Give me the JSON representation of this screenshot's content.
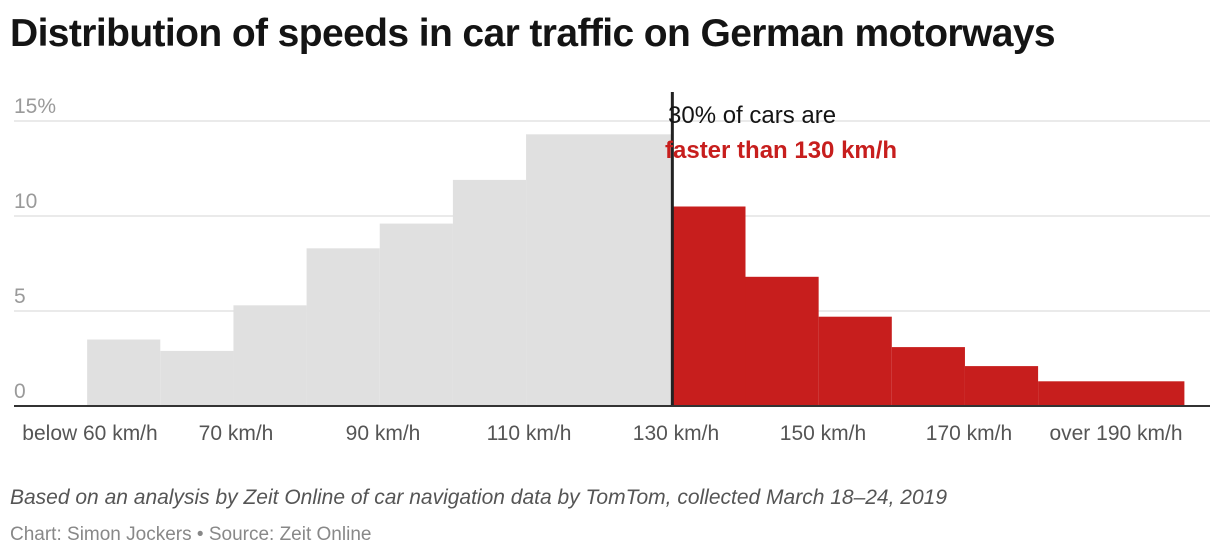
{
  "chart_data": {
    "type": "bar",
    "title": "Distribution of speeds in car traffic on German motorways",
    "xlabel": "",
    "ylabel": "",
    "ylim": [
      0,
      15
    ],
    "y_ticks": [
      {
        "value": 0,
        "label": "0"
      },
      {
        "value": 5,
        "label": "5"
      },
      {
        "value": 10,
        "label": "10"
      },
      {
        "value": 15,
        "label": "15%"
      }
    ],
    "x_ticks": [
      "below 60 km/h",
      "70 km/h",
      "90 km/h",
      "110 km/h",
      "130 km/h",
      "150 km/h",
      "170 km/h",
      "over 190 km/h"
    ],
    "bins": [
      {
        "from": 50,
        "to": 60,
        "value": 3.5,
        "group": "below"
      },
      {
        "from": 60,
        "to": 70,
        "value": 2.9,
        "group": "below"
      },
      {
        "from": 70,
        "to": 80,
        "value": 5.3,
        "group": "below"
      },
      {
        "from": 80,
        "to": 90,
        "value": 8.3,
        "group": "below"
      },
      {
        "from": 90,
        "to": 100,
        "value": 9.6,
        "group": "below"
      },
      {
        "from": 100,
        "to": 110,
        "value": 11.9,
        "group": "below"
      },
      {
        "from": 110,
        "to": 130,
        "value": 14.3,
        "group": "below"
      },
      {
        "from": 130,
        "to": 140,
        "value": 10.5,
        "group": "above"
      },
      {
        "from": 140,
        "to": 150,
        "value": 6.8,
        "group": "above"
      },
      {
        "from": 150,
        "to": 160,
        "value": 4.7,
        "group": "above"
      },
      {
        "from": 160,
        "to": 170,
        "value": 3.1,
        "group": "above"
      },
      {
        "from": 170,
        "to": 180,
        "value": 2.1,
        "group": "above"
      },
      {
        "from": 180,
        "to": 200,
        "value": 1.3,
        "group": "above"
      }
    ],
    "threshold": 130,
    "annotation": {
      "line1": "30% of cars are",
      "line2": "faster than 130 km/h"
    },
    "colors": {
      "below": "#e0e0e0",
      "above": "#c71e1d",
      "highlight_text": "#c71e1d",
      "grid": "#e3e3e3",
      "axis": "#333333"
    },
    "grid": true
  },
  "notes": "Based on an analysis by Zeit Online of car navigation data by TomTom, collected March 18–24, 2019",
  "credit": "Chart: Simon Jockers • Source: Zeit Online"
}
